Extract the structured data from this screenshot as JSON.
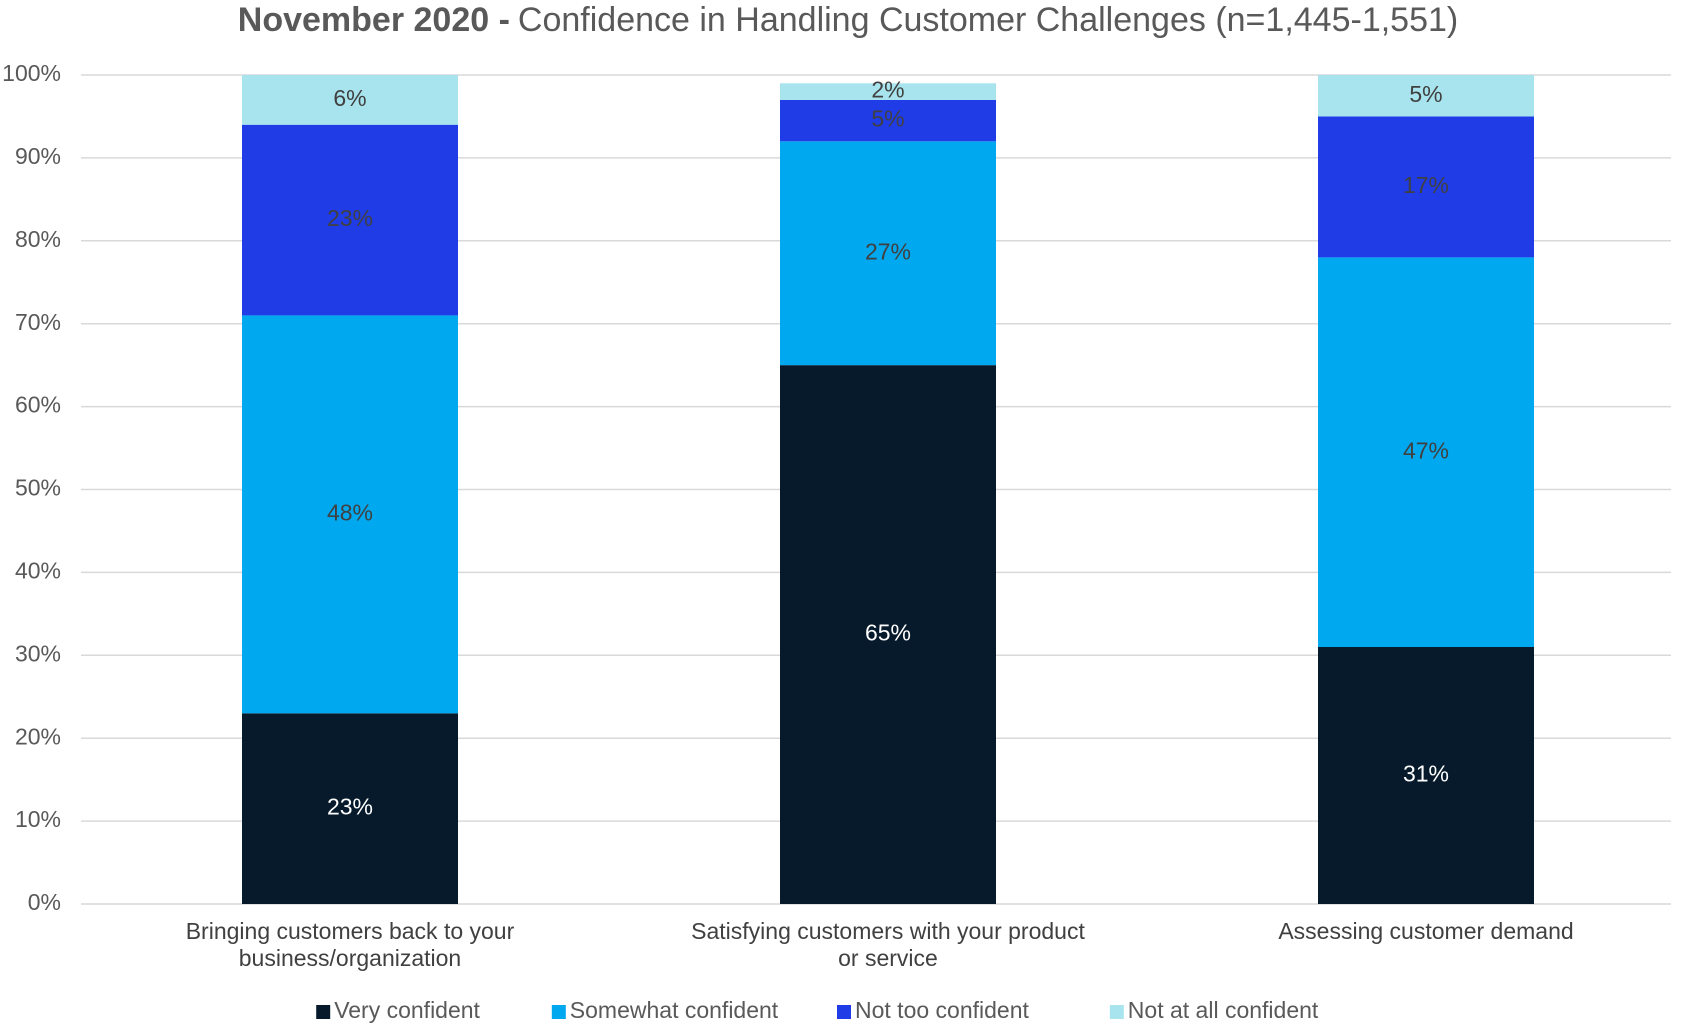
{
  "chart_data": {
    "type": "stacked_bar",
    "title": "November 2020 -",
    "subtitle": "Confidence in Handling Customer Challenges (n=1,445-1,551)",
    "categories": [
      "Bringing customers back to your business/organization",
      "Satisfying customers with your product or service",
      "Assessing customer demand"
    ],
    "series": [
      {
        "name": "Very confident",
        "color": "#061a2b",
        "label_color": "#ffffff",
        "values": [
          23,
          65,
          31
        ],
        "value_labels": [
          "23%",
          "65%",
          "31%"
        ]
      },
      {
        "name": "Somewhat confident",
        "color": "#00a8f0",
        "label_color": "#404040",
        "values": [
          48,
          27,
          47
        ],
        "value_labels": [
          "48%",
          "27%",
          "47%"
        ]
      },
      {
        "name": "Not too confident",
        "color": "#203ce6",
        "label_color": "#404040",
        "values": [
          23,
          5,
          17
        ],
        "value_labels": [
          "23%",
          "5%",
          "17%"
        ]
      },
      {
        "name": "Not at all confident",
        "color": "#a8e4ee",
        "label_color": "#404040",
        "values": [
          6,
          2,
          5
        ],
        "value_labels": [
          "6%",
          "2%",
          "5%"
        ]
      }
    ],
    "ylim": [
      0,
      100
    ],
    "yticks": [
      {
        "value": 0,
        "label": "0%"
      },
      {
        "value": 10,
        "label": "10%"
      },
      {
        "value": 20,
        "label": "20%"
      },
      {
        "value": 30,
        "label": "30%"
      },
      {
        "value": 40,
        "label": "40%"
      },
      {
        "value": 50,
        "label": "50%"
      },
      {
        "value": 60,
        "label": "60%"
      },
      {
        "value": 70,
        "label": "70%"
      },
      {
        "value": 80,
        "label": "80%"
      },
      {
        "value": 90,
        "label": "90%"
      },
      {
        "value": 100,
        "label": "100%"
      }
    ],
    "grid": true,
    "legend": "bottom"
  }
}
